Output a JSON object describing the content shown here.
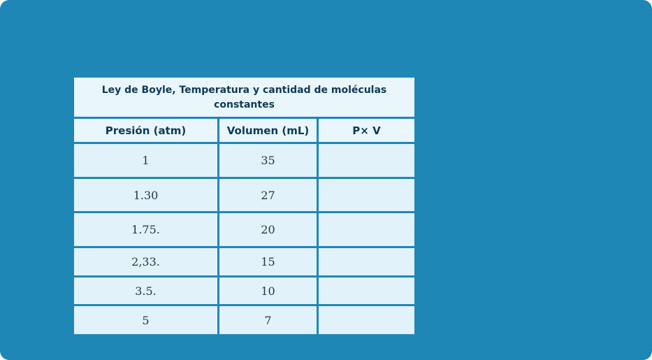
{
  "theme": {
    "slide_background": "#1F87B6",
    "header_cell_background": "#E9F6FC",
    "data_cell_background": "#E2F2FA",
    "grid_line_color": "#FFFFFF",
    "header_text_color": "#0E3A53",
    "data_text_color": "#203845"
  },
  "chart_data": {
    "type": "table",
    "title": "Ley de Boyle, Temperatura y cantidad de moléculas constantes",
    "columns": [
      "Presión (atm)",
      "Volumen (mL)",
      "P× V"
    ],
    "rows": [
      [
        "1",
        "35",
        ""
      ],
      [
        "1.30",
        "27",
        ""
      ],
      [
        "1.75.",
        "20",
        ""
      ],
      [
        "2,33.",
        "15",
        ""
      ],
      [
        "3.5.",
        "10",
        ""
      ],
      [
        "5",
        "7",
        ""
      ]
    ]
  }
}
